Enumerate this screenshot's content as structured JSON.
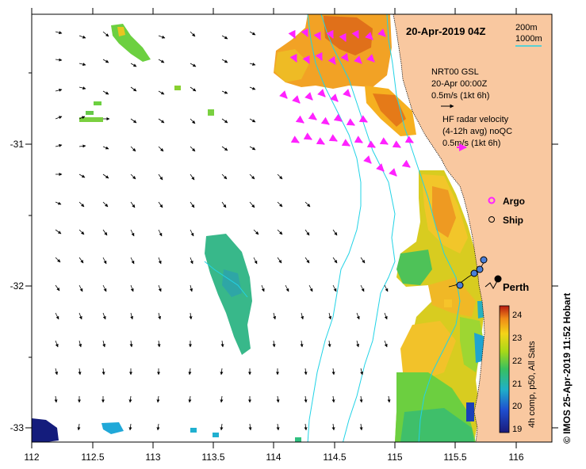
{
  "title": "20-Apr-2019 04Z",
  "depth_legend": {
    "shallow": "200m",
    "deep": "1000m"
  },
  "model_legend": {
    "name": "NRT00 GSL",
    "time": "20-Apr 00:00Z",
    "scale": "0.5m/s (1kt 6h)"
  },
  "radar_legend": {
    "line1": "HF radar velocity",
    "line2": "(4-12h avg) noQC",
    "scale": "0.5m/s (1kt 6h)"
  },
  "markers": {
    "argo": "Argo",
    "ship": "Ship"
  },
  "city": "Perth",
  "colorbar": {
    "label": "4h comp, p50, All Sats",
    "ticks": [
      "24",
      "23",
      "22",
      "21",
      "20",
      "19"
    ]
  },
  "credit": "© IMOS 25-Apr-2019 11:52 Hobart",
  "axes": {
    "x_ticks": [
      "112",
      "112.5",
      "113",
      "113.5",
      "114",
      "114.5",
      "115",
      "115.5",
      "116"
    ],
    "y_ticks": [
      "-31",
      "-32",
      "-33"
    ]
  },
  "colors": {
    "land": "#f9c8a0",
    "isobath": "#22d3e6",
    "radar_arrow": "#ff22ff",
    "ship": "#4a7fd8"
  },
  "map_data": {
    "type": "sea-surface-temperature-map",
    "region": "Perth, Western Australia",
    "lon_range": [
      112,
      116.3
    ],
    "lat_range": [
      -33.1,
      -30.2
    ],
    "sst_range_c": [
      18.8,
      24.4
    ]
  }
}
